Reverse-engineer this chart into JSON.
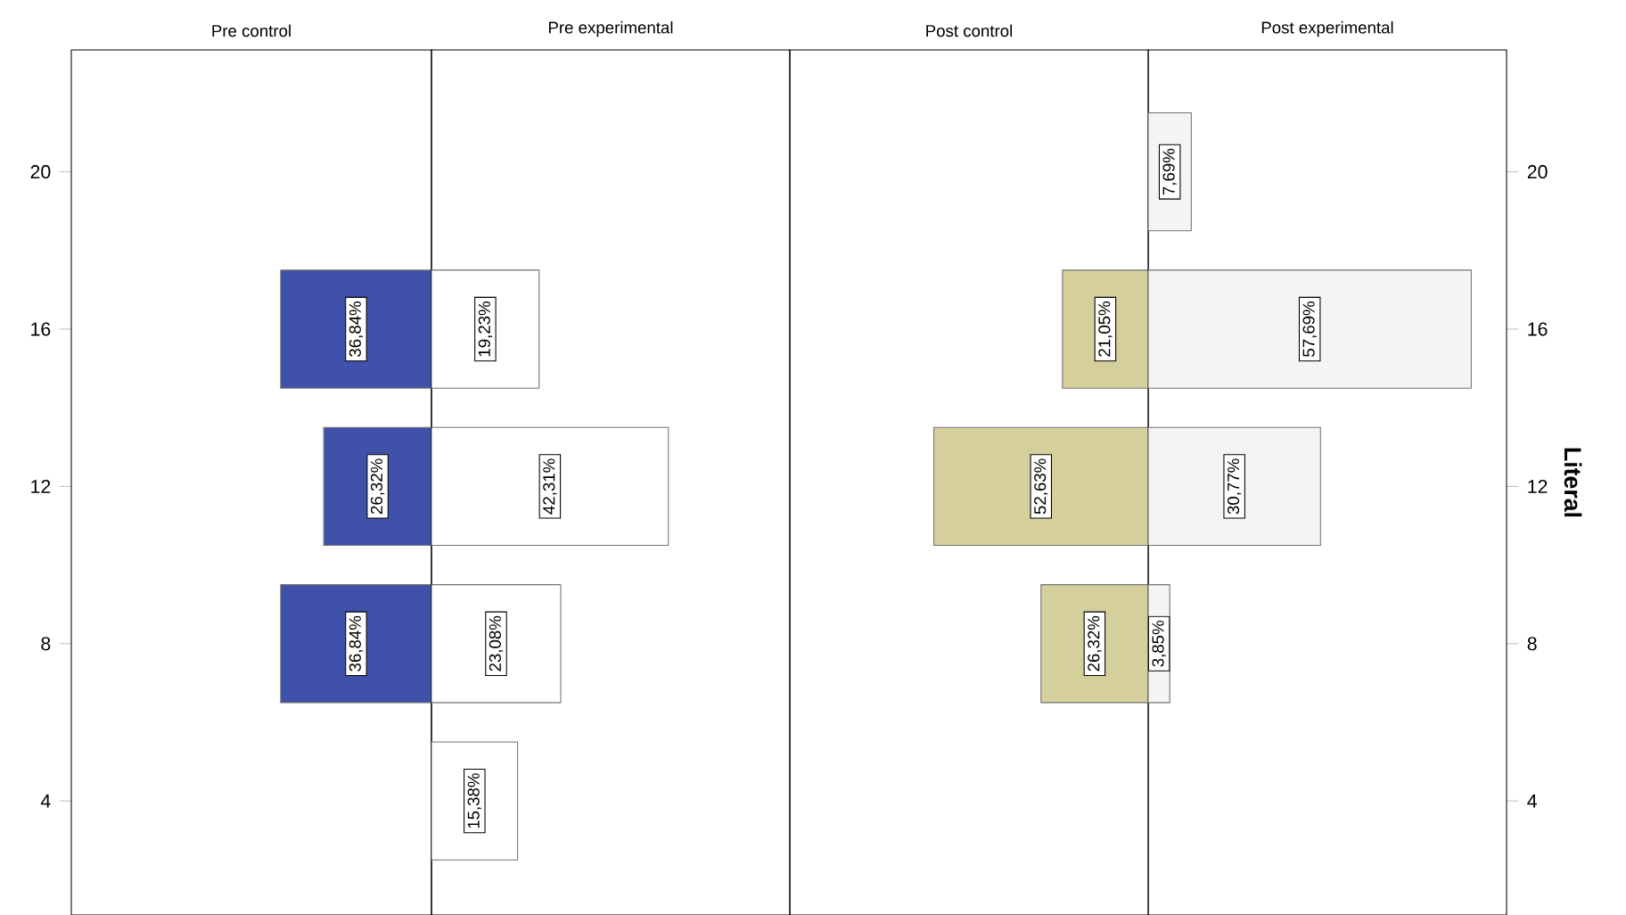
{
  "chart_data": [
    {
      "type": "bar",
      "orientation": "horizontal",
      "title": "Pre control",
      "categories": [
        "20",
        "16",
        "12",
        "8",
        "4"
      ],
      "values": [
        null,
        36.84,
        26.32,
        36.84,
        null
      ],
      "value_labels": [
        null,
        "36,84%",
        "26,32%",
        "36,84%",
        null
      ],
      "color": "#3f51a8",
      "xlim": [
        88,
        0
      ],
      "tick_labels": "y"
    },
    {
      "type": "bar",
      "orientation": "horizontal",
      "title": "Pre experimental",
      "categories": [
        "20",
        "16",
        "12",
        "8",
        "4"
      ],
      "values": [
        null,
        19.23,
        42.31,
        23.08,
        15.38
      ],
      "value_labels": [
        null,
        "19,23%",
        "42,31%",
        "23,08%",
        "15,38%"
      ],
      "color": "#ffffff",
      "xlim": [
        0,
        64
      ],
      "tick_labels": false
    },
    {
      "type": "bar",
      "orientation": "horizontal",
      "title": "Post control",
      "categories": [
        "20",
        "16",
        "12",
        "8",
        "4"
      ],
      "values": [
        null,
        21.05,
        52.63,
        26.32,
        null
      ],
      "value_labels": [
        null,
        "21,05%",
        "52,63%",
        "26,32%",
        null
      ],
      "color": "#d4cf9b",
      "xlim": [
        88,
        0
      ],
      "tick_labels": false
    },
    {
      "type": "bar",
      "orientation": "horizontal",
      "title": "Post experimental",
      "ylabel": "Literal",
      "categories": [
        "20",
        "16",
        "12",
        "8",
        "4"
      ],
      "values": [
        7.69,
        57.69,
        30.77,
        3.85,
        null
      ],
      "value_labels": [
        "7,69%",
        "57,69%",
        "30,77%",
        "3,85%",
        null
      ],
      "color": "#f4f4f4",
      "xlim": [
        0,
        64
      ],
      "tick_labels": "y"
    }
  ]
}
